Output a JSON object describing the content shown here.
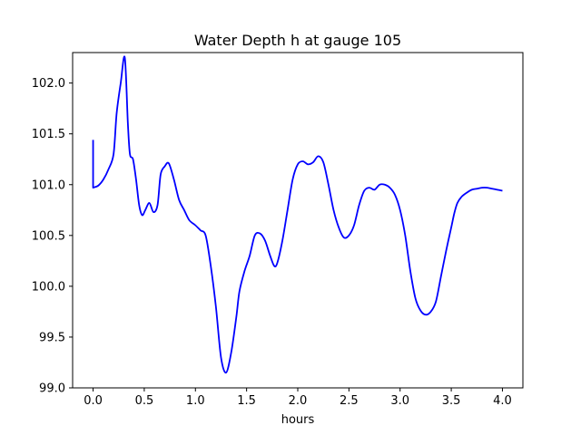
{
  "chart_data": {
    "type": "line",
    "title": "Water Depth h at gauge 105",
    "xlabel": "hours",
    "ylabel": "",
    "xlim": [
      -0.2,
      4.2
    ],
    "ylim": [
      99.0,
      102.3
    ],
    "xticks": [
      0.0,
      0.5,
      1.0,
      1.5,
      2.0,
      2.5,
      3.0,
      3.5,
      4.0
    ],
    "xtick_labels": [
      "0.0",
      "0.5",
      "1.0",
      "1.5",
      "2.0",
      "2.5",
      "3.0",
      "3.5",
      "4.0"
    ],
    "yticks": [
      99.0,
      99.5,
      100.0,
      100.5,
      101.0,
      101.5,
      102.0
    ],
    "ytick_labels": [
      "99.0",
      "99.5",
      "100.0",
      "100.5",
      "101.0",
      "101.5",
      "102.0"
    ],
    "grid": false,
    "series": [
      {
        "color": "#0000ff",
        "x": [
          0.0,
          0.0,
          0.05,
          0.1,
          0.15,
          0.2,
          0.23,
          0.27,
          0.31,
          0.34,
          0.36,
          0.39,
          0.42,
          0.45,
          0.48,
          0.51,
          0.55,
          0.59,
          0.63,
          0.66,
          0.7,
          0.74,
          0.79,
          0.84,
          0.89,
          0.94,
          1.0,
          1.05,
          1.1,
          1.15,
          1.2,
          1.25,
          1.3,
          1.35,
          1.4,
          1.43,
          1.48,
          1.53,
          1.58,
          1.63,
          1.68,
          1.73,
          1.77,
          1.8,
          1.85,
          1.9,
          1.95,
          2.0,
          2.05,
          2.1,
          2.15,
          2.2,
          2.25,
          2.3,
          2.35,
          2.4,
          2.45,
          2.5,
          2.55,
          2.6,
          2.65,
          2.7,
          2.75,
          2.8,
          2.85,
          2.9,
          2.95,
          3.0,
          3.05,
          3.1,
          3.15,
          3.2,
          3.25,
          3.3,
          3.35,
          3.4,
          3.45,
          3.5,
          3.53,
          3.56,
          3.6,
          3.65,
          3.7,
          3.75,
          3.8,
          3.85,
          3.9,
          3.95,
          4.0
        ],
        "y": [
          101.44,
          100.97,
          100.99,
          101.05,
          101.15,
          101.3,
          101.7,
          102.0,
          102.25,
          101.6,
          101.3,
          101.25,
          101.05,
          100.8,
          100.7,
          100.75,
          100.82,
          100.73,
          100.8,
          101.1,
          101.18,
          101.21,
          101.05,
          100.85,
          100.75,
          100.65,
          100.6,
          100.55,
          100.5,
          100.2,
          99.8,
          99.3,
          99.15,
          99.35,
          99.7,
          99.95,
          100.15,
          100.3,
          100.5,
          100.52,
          100.45,
          100.3,
          100.2,
          100.23,
          100.45,
          100.75,
          101.05,
          101.2,
          101.23,
          101.2,
          101.22,
          101.28,
          101.22,
          101.0,
          100.75,
          100.58,
          100.48,
          100.5,
          100.6,
          100.8,
          100.94,
          100.97,
          100.95,
          101.0,
          101.0,
          100.97,
          100.9,
          100.75,
          100.5,
          100.15,
          99.88,
          99.76,
          99.72,
          99.75,
          99.85,
          100.1,
          100.35,
          100.58,
          100.72,
          100.82,
          100.88,
          100.92,
          100.95,
          100.96,
          100.97,
          100.97,
          100.96,
          100.95,
          100.94
        ]
      }
    ]
  }
}
